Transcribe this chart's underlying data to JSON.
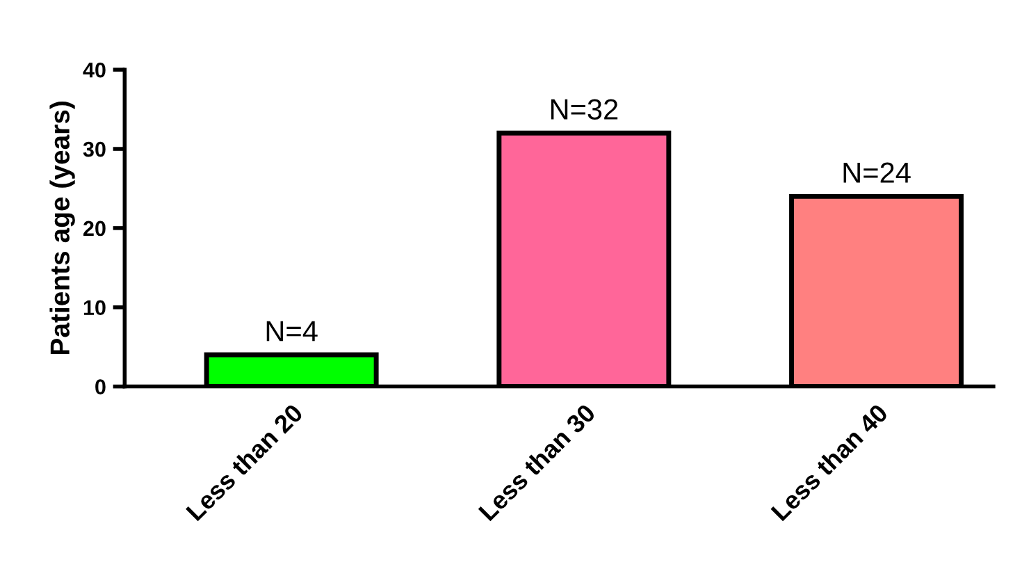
{
  "chart_data": {
    "type": "bar",
    "ylabel": "Patients age (years)",
    "categories": [
      "Less than 20",
      "Less than 30",
      "Less than 40"
    ],
    "values": [
      4,
      32,
      24
    ],
    "colors": [
      "#00ff00",
      "#ff6699",
      "#ff8080"
    ],
    "value_labels": [
      "N=4",
      "N=32",
      "N=24"
    ],
    "ylim": [
      0,
      40
    ],
    "yticks": [
      0,
      10,
      20,
      30,
      40
    ],
    "grid": false,
    "legend": false
  }
}
